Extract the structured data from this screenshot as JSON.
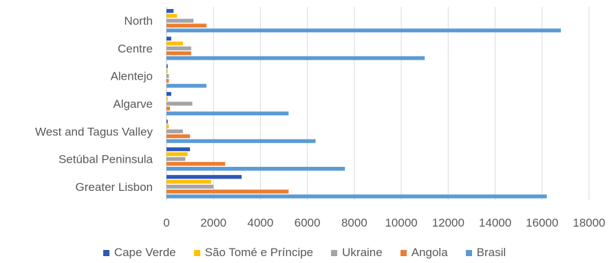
{
  "chart_data": {
    "type": "bar",
    "orientation": "horizontal",
    "categories": [
      "North",
      "Centre",
      "Alentejo",
      "Algarve",
      "West and Tagus Valley",
      "Setúbal Peninsula",
      "Greater Lisbon"
    ],
    "series": [
      {
        "name": "Cape Verde",
        "color": "#2e57b8",
        "values": [
          300,
          200,
          50,
          200,
          50,
          1000,
          3200
        ]
      },
      {
        "name": "São Tomé e Príncipe",
        "color": "#ffc000",
        "values": [
          450,
          700,
          50,
          50,
          100,
          900,
          1900
        ]
      },
      {
        "name": "Ukraine",
        "color": "#a5a5a5",
        "values": [
          1150,
          1050,
          100,
          1100,
          700,
          800,
          2000
        ]
      },
      {
        "name": "Angola",
        "color": "#ed7d31",
        "values": [
          1700,
          1050,
          100,
          150,
          1000,
          2500,
          5200
        ]
      },
      {
        "name": "Brasil",
        "color": "#5b9bd5",
        "values": [
          16800,
          11000,
          1700,
          5200,
          6350,
          7600,
          16200
        ]
      }
    ],
    "xlim": [
      0,
      18000
    ],
    "xticks": [
      0,
      2000,
      4000,
      6000,
      8000,
      10000,
      12000,
      14000,
      16000,
      18000
    ],
    "grid": "vertical",
    "legend_position": "bottom"
  }
}
